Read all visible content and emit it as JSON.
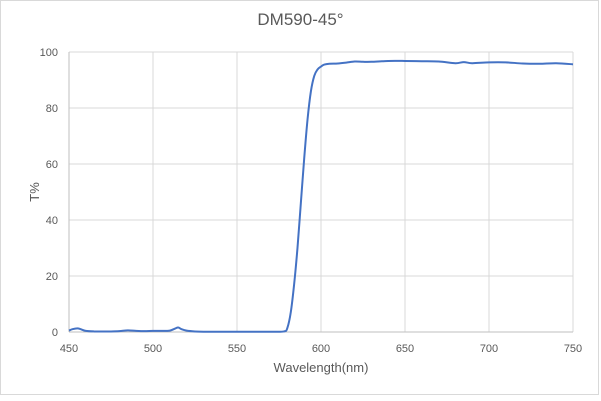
{
  "chart_data": {
    "type": "line",
    "title": "DM590-45°",
    "xlabel": "Wavelength(nm)",
    "ylabel": "T%",
    "xlim": [
      450,
      750
    ],
    "ylim": [
      0,
      100
    ],
    "xticks": [
      450,
      500,
      550,
      600,
      650,
      700,
      750
    ],
    "yticks": [
      0,
      20,
      40,
      60,
      80,
      100
    ],
    "grid": true,
    "legend": null,
    "series": [
      {
        "name": "T%",
        "color": "#4472c4",
        "x": [
          450,
          452,
          455,
          457,
          460,
          465,
          470,
          475,
          480,
          485,
          490,
          495,
          500,
          505,
          510,
          513,
          515,
          517,
          520,
          525,
          530,
          540,
          550,
          560,
          570,
          578,
          580,
          582,
          584,
          586,
          588,
          590,
          592,
          594,
          596,
          598,
          600,
          602,
          605,
          610,
          615,
          620,
          625,
          630,
          640,
          650,
          660,
          670,
          680,
          685,
          690,
          700,
          710,
          720,
          730,
          740,
          750
        ],
        "y": [
          0.5,
          1.0,
          1.3,
          1.0,
          0.4,
          0.2,
          0.2,
          0.2,
          0.3,
          0.6,
          0.4,
          0.3,
          0.4,
          0.4,
          0.5,
          1.2,
          1.6,
          1.0,
          0.5,
          0.2,
          0.1,
          0.1,
          0.1,
          0.1,
          0.1,
          0.2,
          1.5,
          7,
          17,
          30,
          46,
          62,
          76,
          86,
          91.5,
          93.8,
          94.8,
          95.5,
          95.8,
          95.9,
          96.2,
          96.6,
          96.5,
          96.5,
          96.8,
          96.8,
          96.7,
          96.6,
          96.0,
          96.4,
          96.0,
          96.3,
          96.3,
          95.9,
          95.8,
          96.0,
          95.6
        ]
      }
    ]
  }
}
